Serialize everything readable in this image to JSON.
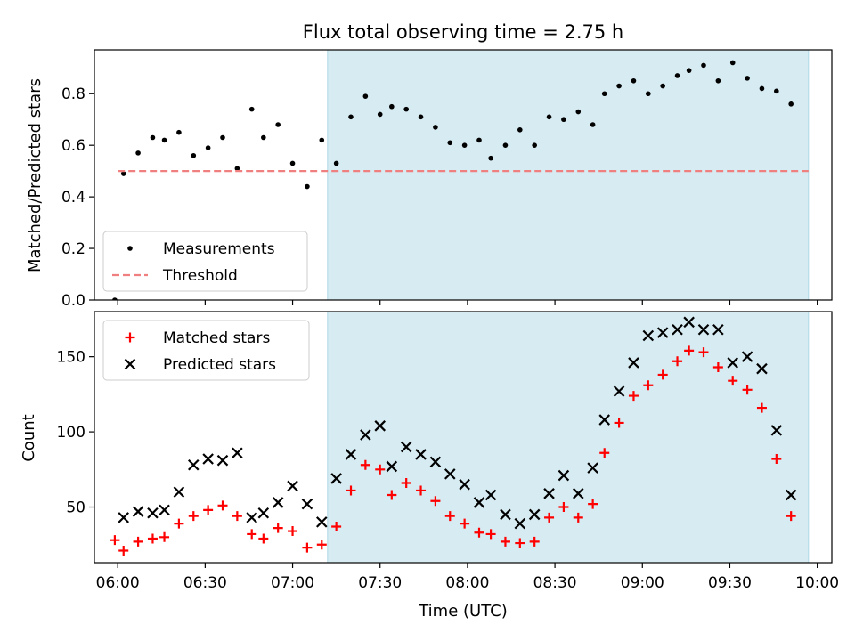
{
  "title": "Flux total observing time = 2.75 h",
  "xlabel": "Time (UTC)",
  "x_ticks": [
    "06:00",
    "06:30",
    "07:00",
    "07:30",
    "08:00",
    "08:30",
    "09:00",
    "09:30",
    "10:00"
  ],
  "colors": {
    "shade": "#add8e6",
    "measure": "#000000",
    "threshold": "#f08080",
    "matched": "#ff0000",
    "predicted": "#000000"
  },
  "chart_data": [
    {
      "type": "scatter",
      "ylabel": "Matched/Predicted stars",
      "xlim": [
        "05:52",
        "10:05"
      ],
      "ylim": [
        0,
        0.97
      ],
      "y_ticks": [
        "0.0",
        "0.2",
        "0.4",
        "0.6",
        "0.8"
      ],
      "shaded_span": [
        "07:12",
        "09:57"
      ],
      "legend_position": "lower-left",
      "series": [
        {
          "name": "Measurements",
          "marker": "dot",
          "points": [
            {
              "x": "05:59",
              "y": 0.0
            },
            {
              "x": "06:02",
              "y": 0.49
            },
            {
              "x": "06:07",
              "y": 0.57
            },
            {
              "x": "06:12",
              "y": 0.63
            },
            {
              "x": "06:16",
              "y": 0.62
            },
            {
              "x": "06:21",
              "y": 0.65
            },
            {
              "x": "06:26",
              "y": 0.56
            },
            {
              "x": "06:31",
              "y": 0.59
            },
            {
              "x": "06:36",
              "y": 0.63
            },
            {
              "x": "06:41",
              "y": 0.51
            },
            {
              "x": "06:46",
              "y": 0.74
            },
            {
              "x": "06:50",
              "y": 0.63
            },
            {
              "x": "06:55",
              "y": 0.68
            },
            {
              "x": "07:00",
              "y": 0.53
            },
            {
              "x": "07:05",
              "y": 0.44
            },
            {
              "x": "07:10",
              "y": 0.62
            },
            {
              "x": "07:15",
              "y": 0.53
            },
            {
              "x": "07:20",
              "y": 0.71
            },
            {
              "x": "07:25",
              "y": 0.79
            },
            {
              "x": "07:30",
              "y": 0.72
            },
            {
              "x": "07:34",
              "y": 0.75
            },
            {
              "x": "07:39",
              "y": 0.74
            },
            {
              "x": "07:44",
              "y": 0.71
            },
            {
              "x": "07:49",
              "y": 0.67
            },
            {
              "x": "07:54",
              "y": 0.61
            },
            {
              "x": "07:59",
              "y": 0.6
            },
            {
              "x": "08:04",
              "y": 0.62
            },
            {
              "x": "08:08",
              "y": 0.55
            },
            {
              "x": "08:13",
              "y": 0.6
            },
            {
              "x": "08:18",
              "y": 0.66
            },
            {
              "x": "08:23",
              "y": 0.6
            },
            {
              "x": "08:28",
              "y": 0.71
            },
            {
              "x": "08:33",
              "y": 0.7
            },
            {
              "x": "08:38",
              "y": 0.73
            },
            {
              "x": "08:43",
              "y": 0.68
            },
            {
              "x": "08:47",
              "y": 0.8
            },
            {
              "x": "08:52",
              "y": 0.83
            },
            {
              "x": "08:57",
              "y": 0.85
            },
            {
              "x": "09:02",
              "y": 0.8
            },
            {
              "x": "09:07",
              "y": 0.83
            },
            {
              "x": "09:12",
              "y": 0.87
            },
            {
              "x": "09:16",
              "y": 0.89
            },
            {
              "x": "09:21",
              "y": 0.91
            },
            {
              "x": "09:26",
              "y": 0.85
            },
            {
              "x": "09:31",
              "y": 0.92
            },
            {
              "x": "09:36",
              "y": 0.86
            },
            {
              "x": "09:41",
              "y": 0.82
            },
            {
              "x": "09:46",
              "y": 0.81
            },
            {
              "x": "09:51",
              "y": 0.76
            }
          ]
        },
        {
          "name": "Threshold",
          "marker": "dashed-line",
          "points": [
            {
              "x": "06:00",
              "y": 0.5
            },
            {
              "x": "09:57",
              "y": 0.5
            }
          ]
        }
      ]
    },
    {
      "type": "scatter",
      "ylabel": "Count",
      "xlim": [
        "05:52",
        "10:05"
      ],
      "ylim": [
        13,
        180
      ],
      "y_ticks": [
        "50",
        "100",
        "150"
      ],
      "shaded_span": [
        "07:12",
        "09:57"
      ],
      "legend_position": "upper-left",
      "series": [
        {
          "name": "Matched stars",
          "marker": "plus",
          "points": [
            {
              "x": "05:59",
              "y": 28
            },
            {
              "x": "06:02",
              "y": 21
            },
            {
              "x": "06:07",
              "y": 27
            },
            {
              "x": "06:12",
              "y": 29
            },
            {
              "x": "06:16",
              "y": 30
            },
            {
              "x": "06:21",
              "y": 39
            },
            {
              "x": "06:26",
              "y": 44
            },
            {
              "x": "06:31",
              "y": 48
            },
            {
              "x": "06:36",
              "y": 51
            },
            {
              "x": "06:41",
              "y": 44
            },
            {
              "x": "06:46",
              "y": 32
            },
            {
              "x": "06:50",
              "y": 29
            },
            {
              "x": "06:55",
              "y": 36
            },
            {
              "x": "07:00",
              "y": 34
            },
            {
              "x": "07:05",
              "y": 23
            },
            {
              "x": "07:10",
              "y": 25
            },
            {
              "x": "07:15",
              "y": 37
            },
            {
              "x": "07:20",
              "y": 61
            },
            {
              "x": "07:25",
              "y": 78
            },
            {
              "x": "07:30",
              "y": 75
            },
            {
              "x": "07:34",
              "y": 58
            },
            {
              "x": "07:39",
              "y": 66
            },
            {
              "x": "07:44",
              "y": 61
            },
            {
              "x": "07:49",
              "y": 54
            },
            {
              "x": "07:54",
              "y": 44
            },
            {
              "x": "07:59",
              "y": 39
            },
            {
              "x": "08:04",
              "y": 33
            },
            {
              "x": "08:08",
              "y": 32
            },
            {
              "x": "08:13",
              "y": 27
            },
            {
              "x": "08:18",
              "y": 26
            },
            {
              "x": "08:23",
              "y": 27
            },
            {
              "x": "08:28",
              "y": 43
            },
            {
              "x": "08:33",
              "y": 50
            },
            {
              "x": "08:38",
              "y": 43
            },
            {
              "x": "08:43",
              "y": 52
            },
            {
              "x": "08:47",
              "y": 86
            },
            {
              "x": "08:52",
              "y": 106
            },
            {
              "x": "08:57",
              "y": 124
            },
            {
              "x": "09:02",
              "y": 131
            },
            {
              "x": "09:07",
              "y": 138
            },
            {
              "x": "09:12",
              "y": 147
            },
            {
              "x": "09:16",
              "y": 154
            },
            {
              "x": "09:21",
              "y": 153
            },
            {
              "x": "09:26",
              "y": 143
            },
            {
              "x": "09:31",
              "y": 134
            },
            {
              "x": "09:36",
              "y": 128
            },
            {
              "x": "09:41",
              "y": 116
            },
            {
              "x": "09:46",
              "y": 82
            },
            {
              "x": "09:51",
              "y": 44
            }
          ]
        },
        {
          "name": "Predicted stars",
          "marker": "x",
          "points": [
            {
              "x": "06:02",
              "y": 43
            },
            {
              "x": "06:07",
              "y": 47
            },
            {
              "x": "06:12",
              "y": 46
            },
            {
              "x": "06:16",
              "y": 48
            },
            {
              "x": "06:21",
              "y": 60
            },
            {
              "x": "06:26",
              "y": 78
            },
            {
              "x": "06:31",
              "y": 82
            },
            {
              "x": "06:36",
              "y": 81
            },
            {
              "x": "06:41",
              "y": 86
            },
            {
              "x": "06:46",
              "y": 43
            },
            {
              "x": "06:50",
              "y": 46
            },
            {
              "x": "06:55",
              "y": 53
            },
            {
              "x": "07:00",
              "y": 64
            },
            {
              "x": "07:05",
              "y": 52
            },
            {
              "x": "07:10",
              "y": 40
            },
            {
              "x": "07:15",
              "y": 69
            },
            {
              "x": "07:20",
              "y": 85
            },
            {
              "x": "07:25",
              "y": 98
            },
            {
              "x": "07:30",
              "y": 104
            },
            {
              "x": "07:34",
              "y": 77
            },
            {
              "x": "07:39",
              "y": 90
            },
            {
              "x": "07:44",
              "y": 85
            },
            {
              "x": "07:49",
              "y": 80
            },
            {
              "x": "07:54",
              "y": 72
            },
            {
              "x": "07:59",
              "y": 65
            },
            {
              "x": "08:04",
              "y": 53
            },
            {
              "x": "08:08",
              "y": 58
            },
            {
              "x": "08:13",
              "y": 45
            },
            {
              "x": "08:18",
              "y": 39
            },
            {
              "x": "08:23",
              "y": 45
            },
            {
              "x": "08:28",
              "y": 59
            },
            {
              "x": "08:33",
              "y": 71
            },
            {
              "x": "08:38",
              "y": 59
            },
            {
              "x": "08:43",
              "y": 76
            },
            {
              "x": "08:47",
              "y": 108
            },
            {
              "x": "08:52",
              "y": 127
            },
            {
              "x": "08:57",
              "y": 146
            },
            {
              "x": "09:02",
              "y": 164
            },
            {
              "x": "09:07",
              "y": 166
            },
            {
              "x": "09:12",
              "y": 168
            },
            {
              "x": "09:16",
              "y": 173
            },
            {
              "x": "09:21",
              "y": 168
            },
            {
              "x": "09:26",
              "y": 168
            },
            {
              "x": "09:31",
              "y": 146
            },
            {
              "x": "09:36",
              "y": 150
            },
            {
              "x": "09:41",
              "y": 142
            },
            {
              "x": "09:46",
              "y": 101
            },
            {
              "x": "09:51",
              "y": 58
            }
          ]
        }
      ]
    }
  ]
}
